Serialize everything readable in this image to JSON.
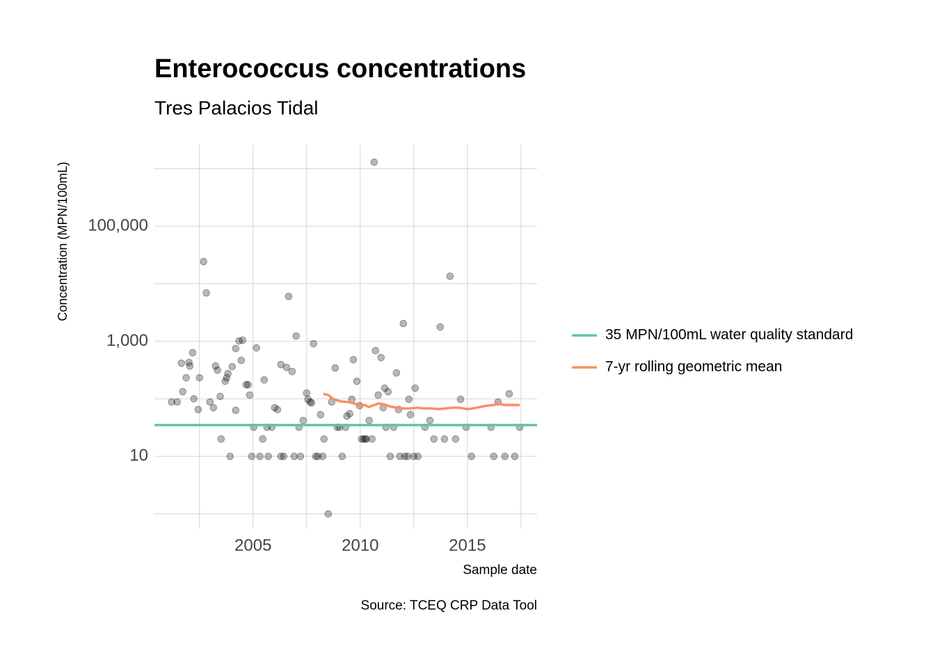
{
  "chart_data": {
    "type": "scatter",
    "title": "Enterococcus concentrations",
    "subtitle": "Tres Palacios Tidal",
    "x_label": "Sample date",
    "y_label": "Concentration (MPN/100mL)",
    "caption": "Source: TCEQ CRP Data Tool",
    "xlim": [
      2000.4,
      2018.25
    ],
    "xticks": [
      2005,
      2010,
      2015
    ],
    "x_minor_gridlines": [
      2002.5,
      2007.5,
      2012.5,
      2017.5
    ],
    "ylim": [
      0.55,
      2600000
    ],
    "log_y": true,
    "yticks": [
      10,
      {
        "value": 1000,
        "label": "1,000"
      },
      {
        "value": 100000,
        "label": "100,000"
      }
    ],
    "y_minor_gridlines": [
      1,
      100,
      10000,
      1000000
    ],
    "grid": true,
    "legend_position": "right",
    "points": {
      "color": "#000000",
      "x": [
        2001.2,
        2001.46,
        2001.66,
        2001.72,
        2001.88,
        2002.01,
        2002.05,
        2002.18,
        2002.24,
        2002.44,
        2002.5,
        2002.69,
        2002.82,
        2002.99,
        2003.15,
        2003.25,
        2003.34,
        2003.47,
        2003.51,
        2003.7,
        2003.77,
        2003.83,
        2003.93,
        2004.03,
        2004.19,
        2004.19,
        2004.35,
        2004.45,
        2004.51,
        2004.68,
        2004.77,
        2004.84,
        2004.94,
        2005.03,
        2005.16,
        2005.32,
        2005.45,
        2005.52,
        2005.65,
        2005.71,
        2005.88,
        2006.01,
        2006.14,
        2006.3,
        2006.3,
        2006.43,
        2006.56,
        2006.66,
        2006.82,
        2006.92,
        2007.01,
        2007.14,
        2007.21,
        2007.34,
        2007.5,
        2007.56,
        2007.66,
        2007.73,
        2007.82,
        2007.92,
        2008.02,
        2008.15,
        2008.25,
        2008.31,
        2008.51,
        2008.67,
        2008.83,
        2008.93,
        2009.03,
        2009.16,
        2009.32,
        2009.38,
        2009.51,
        2009.61,
        2009.68,
        2009.84,
        2009.97,
        2010.06,
        2010.16,
        2010.23,
        2010.29,
        2010.42,
        2010.55,
        2010.65,
        2010.71,
        2010.84,
        2010.97,
        2011.07,
        2011.14,
        2011.2,
        2011.3,
        2011.4,
        2011.56,
        2011.69,
        2011.79,
        2011.85,
        2012.01,
        2012.08,
        2012.21,
        2012.27,
        2012.34,
        2012.5,
        2012.56,
        2012.69,
        2013.02,
        2013.25,
        2013.44,
        2013.73,
        2013.93,
        2014.19,
        2014.45,
        2014.68,
        2014.94,
        2015.19,
        2016.1,
        2016.23,
        2016.43,
        2016.75,
        2016.95,
        2017.21,
        2017.44
      ],
      "values": [
        88,
        88,
        416,
        133,
        232,
        428,
        372,
        632,
        100,
        65,
        232,
        24200,
        6920,
        88,
        70,
        372,
        315,
        110,
        20,
        202,
        232,
        274,
        10,
        362,
        63,
        747,
        1014,
        466,
        1042,
        176,
        176,
        116,
        10,
        32,
        768,
        10,
        20,
        213,
        32,
        10,
        32,
        70,
        65,
        394,
        10,
        10,
        352,
        6010,
        298,
        10,
        1233,
        32,
        10,
        42,
        126,
        98,
        88,
        85,
        908,
        10,
        10,
        53,
        10,
        20,
        1,
        88,
        343,
        32,
        32,
        10,
        32,
        50,
        55,
        98,
        479,
        202,
        76,
        20,
        20,
        20,
        20,
        42,
        20,
        1294000,
        687,
        116,
        520,
        70,
        153,
        32,
        133,
        10,
        32,
        282,
        65,
        10,
        2033,
        10,
        10,
        98,
        53,
        10,
        153,
        10,
        32,
        42,
        20,
        1770,
        20,
        13490,
        20,
        98,
        32,
        10,
        32,
        10,
        88,
        10,
        122,
        10,
        32
      ]
    },
    "series": [
      {
        "name": "35 MPN/100mL water quality standard",
        "color": "#66c2a5",
        "value": 35
      },
      {
        "name": "7-yr rolling geometric mean",
        "color": "#fc8d62",
        "x": [
          2008.28,
          2008.51,
          2008.77,
          2009.09,
          2009.42,
          2009.74,
          2010.0,
          2010.23,
          2010.39,
          2010.65,
          2010.88,
          2011.1,
          2011.36,
          2011.69,
          2012.01,
          2012.34,
          2012.66,
          2012.99,
          2013.31,
          2013.64,
          2013.96,
          2014.29,
          2014.61,
          2015.0,
          2015.26,
          2015.58,
          2015.91,
          2016.23,
          2016.43,
          2016.72,
          2017.05,
          2017.44
        ],
        "values": [
          122,
          116,
          98,
          90,
          88,
          83,
          76,
          78,
          72,
          78,
          83,
          80,
          74,
          70,
          68,
          68,
          70,
          68,
          68,
          66,
          68,
          70,
          70,
          66,
          68,
          72,
          76,
          78,
          83,
          78,
          78,
          78
        ]
      }
    ]
  }
}
